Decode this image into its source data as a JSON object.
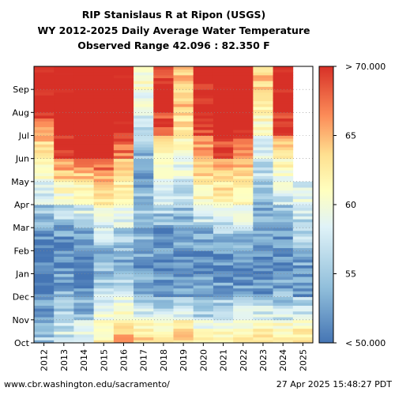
{
  "chart_data": {
    "type": "heatmap",
    "title": "RIP Stanislaus R at Ripon (USGS)",
    "subtitle": "WY 2012-2025 Daily Average Water Temperature",
    "range_text": "Observed Range 42.096 : 82.350 F",
    "x_categories": [
      "2012",
      "2013",
      "2014",
      "2015",
      "2016",
      "2017",
      "2018",
      "2019",
      "2020",
      "2021",
      "2022",
      "2023",
      "2024",
      "2025"
    ],
    "y_categories": [
      "Oct",
      "Nov",
      "Dec",
      "Jan",
      "Feb",
      "Mar",
      "Apr",
      "May",
      "Jun",
      "Jul",
      "Aug",
      "Sep"
    ],
    "colorbar": {
      "min": 50,
      "max": 70,
      "ticks": [
        "< 50.000",
        "55",
        "60",
        "65",
        "> 70.000"
      ],
      "colors": [
        "#4575b4",
        "#91bfdb",
        "#e0f3f8",
        "#ffffbf",
        "#fee090",
        "#fc8d59",
        "#d73027"
      ]
    },
    "monthly_means_F": {
      "2012": [
        54.5,
        52.0,
        50.5,
        50.0,
        50.5,
        52.0,
        56.0,
        59.0,
        62.0,
        66.0,
        71.5,
        71.0
      ],
      "2013": [
        56.5,
        54.5,
        53.0,
        51.0,
        51.5,
        53.0,
        58.0,
        63.0,
        70.0,
        72.0,
        72.0,
        72.0
      ],
      "2014": [
        58.5,
        54.0,
        51.0,
        50.5,
        51.5,
        55.0,
        59.0,
        63.0,
        71.0,
        72.5,
        73.0,
        72.5
      ],
      "2015": [
        61.5,
        58.0,
        55.0,
        53.0,
        54.0,
        57.0,
        62.0,
        65.0,
        73.0,
        75.0,
        76.0,
        75.0
      ],
      "2016": [
        66.0,
        61.0,
        55.0,
        53.0,
        54.0,
        56.0,
        60.0,
        63.0,
        67.0,
        71.0,
        72.0,
        71.5
      ],
      "2017": [
        64.0,
        57.0,
        53.0,
        51.5,
        52.0,
        54.0,
        53.0,
        52.0,
        53.0,
        56.0,
        58.0,
        59.0
      ],
      "2018": [
        62.5,
        56.0,
        52.0,
        50.5,
        51.0,
        53.0,
        57.0,
        58.0,
        61.0,
        68.0,
        71.0,
        70.0
      ],
      "2019": [
        64.0,
        58.0,
        52.0,
        51.0,
        51.5,
        53.0,
        55.0,
        57.0,
        59.0,
        62.0,
        64.0,
        64.5
      ],
      "2020": [
        60.5,
        55.0,
        52.0,
        51.0,
        51.5,
        55.0,
        60.0,
        63.0,
        65.0,
        70.0,
        71.0,
        70.5
      ],
      "2021": [
        61.0,
        56.0,
        52.0,
        51.0,
        52.5,
        56.0,
        61.0,
        64.0,
        68.0,
        72.0,
        73.0,
        72.0
      ],
      "2022": [
        62.0,
        56.5,
        52.0,
        51.0,
        53.0,
        56.0,
        60.0,
        63.0,
        67.0,
        71.0,
        72.0,
        71.5
      ],
      "2023": [
        63.0,
        57.0,
        52.0,
        50.5,
        51.0,
        52.0,
        53.0,
        55.0,
        57.0,
        59.0,
        62.0,
        64.0
      ],
      "2024": [
        62.0,
        56.0,
        53.0,
        51.0,
        51.0,
        53.0,
        56.0,
        59.0,
        62.0,
        69.0,
        72.0,
        71.0
      ],
      "2025": [
        63.0,
        57.0,
        52.0,
        52.0,
        54.0,
        55.0,
        57.0,
        null,
        null,
        null,
        null,
        null
      ]
    }
  },
  "footer": {
    "source": "www.cbr.washington.edu/sacramento/",
    "timestamp": "27 Apr 2025 15:48:27 PDT"
  }
}
